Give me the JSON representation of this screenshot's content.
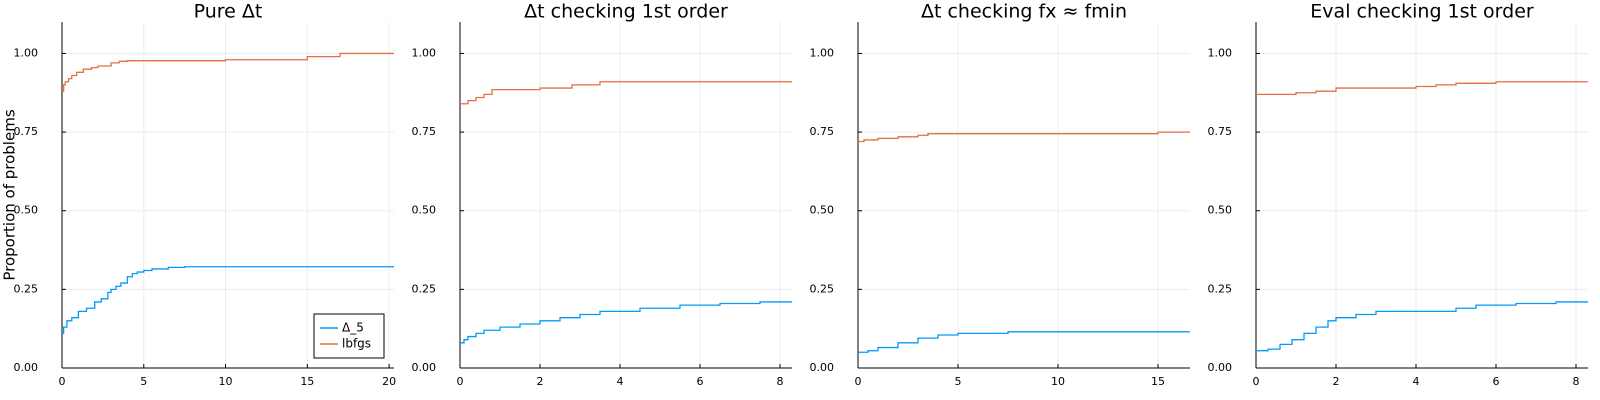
{
  "colors": {
    "series_1": "#009AFA",
    "series_2": "#E26F46",
    "grid": "#ececec",
    "axis": "#000000"
  },
  "chart_data": [
    {
      "type": "line",
      "step": true,
      "title": "Pure Δt",
      "ylabel": "Proportion of problems",
      "xlim": [
        0,
        20.3
      ],
      "ylim": [
        0,
        1.1
      ],
      "xticks": [
        0,
        5,
        10,
        15,
        20
      ],
      "yticks": [
        "0.00",
        "0.25",
        "0.50",
        "0.75",
        "1.00"
      ],
      "legend": {
        "position": "bottom-right",
        "entries": [
          "Δ_5",
          "lbfgs"
        ]
      },
      "series": [
        {
          "name": "Δ_5",
          "x": [
            0,
            0.1,
            0.3,
            0.6,
            1.0,
            1.5,
            2.0,
            2.4,
            2.8,
            3.0,
            3.3,
            3.6,
            4.0,
            4.3,
            4.6,
            5.0,
            5.5,
            6.5,
            7.5,
            8.5,
            20.3
          ],
          "y": [
            0.11,
            0.13,
            0.15,
            0.16,
            0.18,
            0.19,
            0.21,
            0.22,
            0.24,
            0.25,
            0.26,
            0.27,
            0.29,
            0.3,
            0.305,
            0.31,
            0.315,
            0.32,
            0.322,
            0.322,
            0.322
          ]
        },
        {
          "name": "lbfgs",
          "x": [
            0,
            0.1,
            0.2,
            0.4,
            0.6,
            0.9,
            1.3,
            1.8,
            2.2,
            3.0,
            3.5,
            4.0,
            10.0,
            15.0,
            17.0,
            20.3
          ],
          "y": [
            0.88,
            0.9,
            0.91,
            0.92,
            0.93,
            0.94,
            0.95,
            0.955,
            0.96,
            0.97,
            0.975,
            0.977,
            0.98,
            0.99,
            1.0,
            1.0
          ]
        }
      ]
    },
    {
      "type": "line",
      "step": true,
      "title": "Δt checking 1st order",
      "xlim": [
        0,
        8.3
      ],
      "ylim": [
        0,
        1.1
      ],
      "xticks": [
        0,
        2,
        4,
        6,
        8
      ],
      "yticks": [
        "0.00",
        "0.25",
        "0.50",
        "0.75",
        "1.00"
      ],
      "series": [
        {
          "name": "Δ_5",
          "x": [
            0,
            0.1,
            0.2,
            0.4,
            0.6,
            1.0,
            1.5,
            2.0,
            2.5,
            3.0,
            3.5,
            4.5,
            5.5,
            6.5,
            7.5,
            8.3
          ],
          "y": [
            0.08,
            0.09,
            0.1,
            0.11,
            0.12,
            0.13,
            0.14,
            0.15,
            0.16,
            0.17,
            0.18,
            0.19,
            0.2,
            0.205,
            0.21,
            0.21
          ]
        },
        {
          "name": "lbfgs",
          "x": [
            0,
            0.2,
            0.4,
            0.6,
            0.8,
            2.0,
            2.8,
            3.5,
            8.3
          ],
          "y": [
            0.84,
            0.85,
            0.86,
            0.87,
            0.885,
            0.89,
            0.9,
            0.91,
            0.91
          ]
        }
      ]
    },
    {
      "type": "line",
      "step": true,
      "title": "Δt checking fx ≈ fmin",
      "xlim": [
        0,
        16.6
      ],
      "ylim": [
        0,
        1.1
      ],
      "xticks": [
        0,
        5,
        10,
        15
      ],
      "yticks": [
        "0.00",
        "0.25",
        "0.50",
        "0.75",
        "1.00"
      ],
      "series": [
        {
          "name": "Δ_5",
          "x": [
            0,
            0.5,
            1.0,
            2.0,
            3.0,
            4.0,
            5.0,
            7.5,
            10.0,
            16.6
          ],
          "y": [
            0.05,
            0.055,
            0.065,
            0.08,
            0.095,
            0.105,
            0.11,
            0.115,
            0.115,
            0.115
          ]
        },
        {
          "name": "lbfgs",
          "x": [
            0,
            0.3,
            1.0,
            2.0,
            3.0,
            3.5,
            7.5,
            15.0,
            16.6
          ],
          "y": [
            0.72,
            0.725,
            0.73,
            0.735,
            0.74,
            0.745,
            0.745,
            0.75,
            0.75
          ]
        }
      ]
    },
    {
      "type": "line",
      "step": true,
      "title": "Eval checking 1st order",
      "xlim": [
        0,
        8.3
      ],
      "ylim": [
        0,
        1.1
      ],
      "xticks": [
        0,
        2,
        4,
        6,
        8
      ],
      "yticks": [
        "0.00",
        "0.25",
        "0.50",
        "0.75",
        "1.00"
      ],
      "series": [
        {
          "name": "Δ_5",
          "x": [
            0,
            0.3,
            0.6,
            0.9,
            1.2,
            1.5,
            1.8,
            2.0,
            2.5,
            3.0,
            4.0,
            5.0,
            5.5,
            6.5,
            7.5,
            8.3
          ],
          "y": [
            0.055,
            0.06,
            0.075,
            0.09,
            0.11,
            0.13,
            0.15,
            0.16,
            0.17,
            0.18,
            0.18,
            0.19,
            0.2,
            0.205,
            0.21,
            0.21
          ]
        },
        {
          "name": "lbfgs",
          "x": [
            0,
            1.0,
            1.5,
            2.0,
            4.0,
            4.5,
            5.0,
            6.0,
            8.3
          ],
          "y": [
            0.87,
            0.875,
            0.88,
            0.89,
            0.895,
            0.9,
            0.905,
            0.91,
            0.91
          ]
        }
      ]
    }
  ]
}
